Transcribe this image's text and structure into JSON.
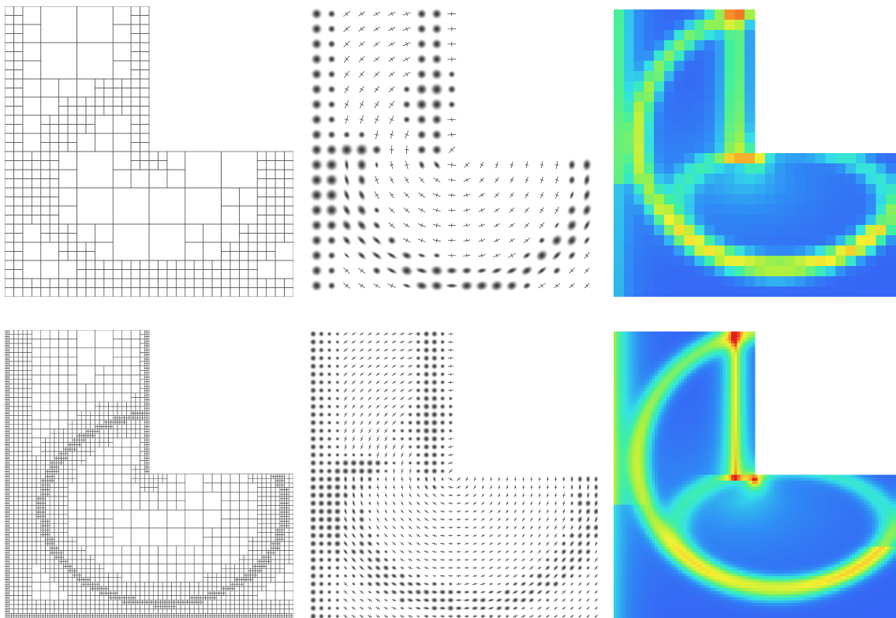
{
  "figure": {
    "rows": [
      {
        "row_id": "coarse",
        "panels": [
          {
            "kind": "adaptive-mesh",
            "refinement": "coarse"
          },
          {
            "kind": "tensor-glyphs",
            "refinement": "coarse"
          },
          {
            "kind": "scalar-field-heatmap",
            "refinement": "coarse"
          }
        ]
      },
      {
        "row_id": "fine",
        "panels": [
          {
            "kind": "adaptive-mesh",
            "refinement": "fine"
          },
          {
            "kind": "tensor-glyphs",
            "refinement": "fine"
          },
          {
            "kind": "scalar-field-heatmap",
            "refinement": "fine"
          }
        ]
      }
    ],
    "colors": {
      "mesh_line": "#555555",
      "glyph": "#333333",
      "colormap": [
        "#3a4cf5",
        "#2f8df5",
        "#33e0e8",
        "#40f0a0",
        "#a8f040",
        "#f5f032",
        "#f59a2a",
        "#e61c1c"
      ],
      "background": "#ffffff"
    }
  }
}
